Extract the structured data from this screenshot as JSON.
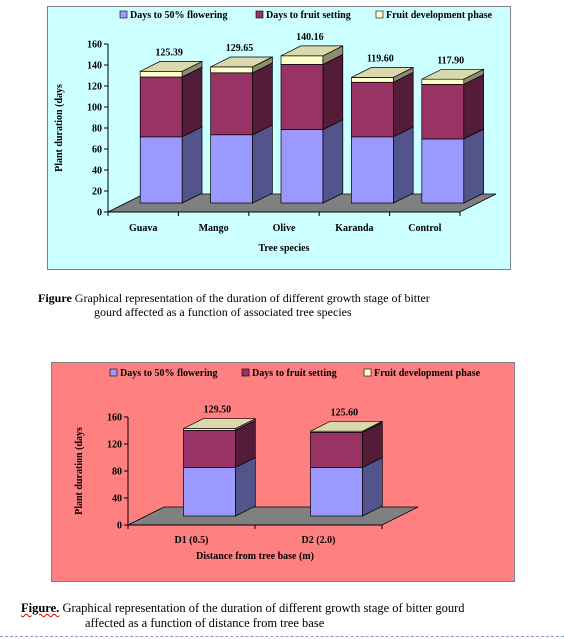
{
  "figures": [
    {
      "caption_label": "Figure",
      "caption_line1": " Graphical representation  of the duration of different growth stage of bitter",
      "caption_line2": "gourd affected as a function of associated  tree species"
    },
    {
      "caption_label": "Figure.",
      "caption_line1": " Graphical representation  of the duration of different growth stage of bitter gourd",
      "caption_line2": "affected as a function of distance  from tree base"
    }
  ],
  "chart_data": [
    {
      "type": "bar",
      "stacked": true,
      "three_d": true,
      "categories": [
        "Guava",
        "Mango",
        "Olive",
        "Karanda",
        "Control"
      ],
      "series": [
        {
          "name": "Days to 50% flowering",
          "values": [
            63,
            65,
            70,
            63,
            61
          ]
        },
        {
          "name": "Days to fruit setting",
          "values": [
            57,
            59,
            62,
            52,
            52
          ]
        },
        {
          "name": "Fruit development phase",
          "values": [
            5.39,
            5.65,
            8.16,
            4.6,
            4.9
          ]
        }
      ],
      "totals": [
        "125.39",
        "129.65",
        "140.16",
        "119.60",
        "117.90"
      ],
      "xlabel": "Tree species",
      "ylabel": "Plant duration (days",
      "ylim": [
        0,
        160
      ],
      "yticks": [
        0,
        20,
        40,
        60,
        80,
        100,
        120,
        140,
        160
      ],
      "grid": false,
      "legend_position": "top",
      "colors": {
        "panel": "#ccffff",
        "series": [
          "#9999ff",
          "#993366",
          "#ffffcc"
        ],
        "floor": "#808080"
      }
    },
    {
      "type": "bar",
      "stacked": true,
      "three_d": true,
      "categories": [
        "D1 (0.5)",
        "D2 (2.0)"
      ],
      "series": [
        {
          "name": "Days to 50% flowering",
          "values": [
            72,
            72
          ]
        },
        {
          "name": "Days to fruit setting",
          "values": [
            55,
            52
          ]
        },
        {
          "name": "Fruit development phase",
          "values": [
            2.5,
            1.6
          ]
        }
      ],
      "totals": [
        "129.50",
        "125.60"
      ],
      "xlabel": "Distance from tree base (m)",
      "ylabel": "Plant duration (days",
      "ylim": [
        0,
        160
      ],
      "yticks": [
        0,
        40,
        80,
        120,
        160
      ],
      "grid": false,
      "legend_position": "top",
      "colors": {
        "panel": "#ff8080",
        "series": [
          "#9999ff",
          "#993366",
          "#ffffcc"
        ],
        "floor": "#808080"
      }
    }
  ]
}
